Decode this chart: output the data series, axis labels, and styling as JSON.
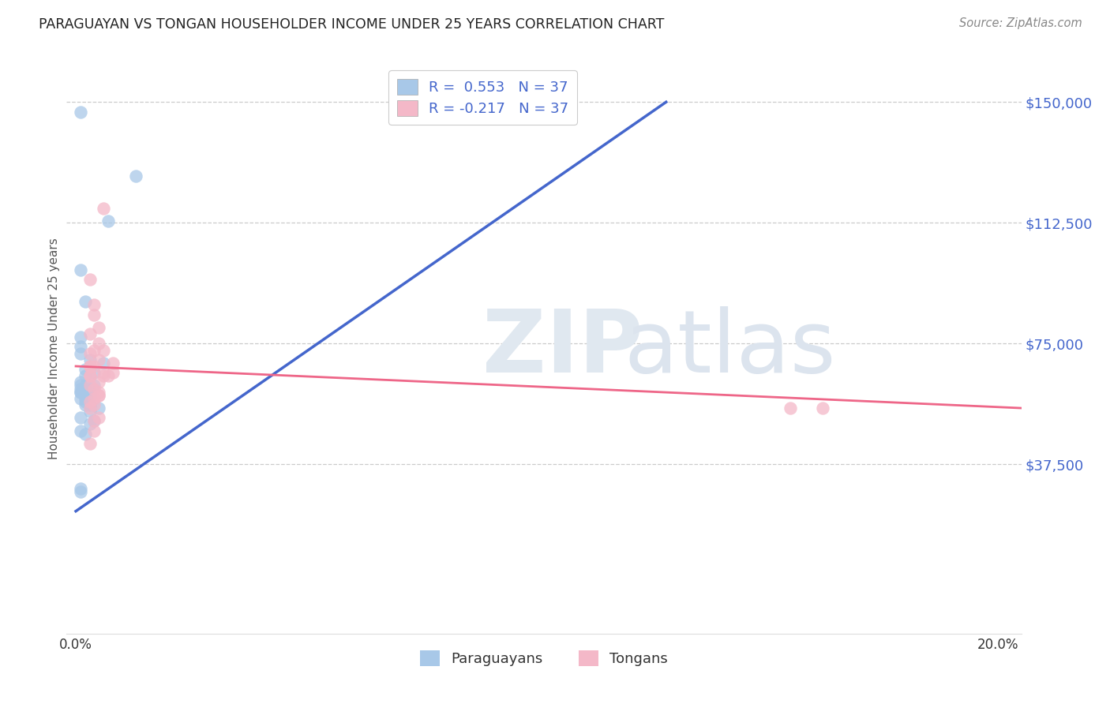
{
  "title": "PARAGUAYAN VS TONGAN HOUSEHOLDER INCOME UNDER 25 YEARS CORRELATION CHART",
  "source": "Source: ZipAtlas.com",
  "ylabel": "Householder Income Under 25 years",
  "ytick_values": [
    37500,
    75000,
    112500,
    150000
  ],
  "ytick_labels": [
    "$37,500",
    "$75,000",
    "$112,500",
    "$150,000"
  ],
  "ymin": -15000,
  "ymax": 162000,
  "xmin": -0.002,
  "xmax": 0.205,
  "r_paraguayan": 0.553,
  "n_paraguayan": 37,
  "r_tongan": -0.217,
  "n_tongan": 37,
  "blue_color": "#a8c8e8",
  "pink_color": "#f4b8c8",
  "line_blue": "#4466cc",
  "line_pink": "#ee6688",
  "blue_text": "#4466cc",
  "ytick_color": "#4466cc",
  "px": [
    0.001,
    0.013,
    0.007,
    0.001,
    0.002,
    0.001,
    0.001,
    0.001,
    0.003,
    0.002,
    0.002,
    0.001,
    0.004,
    0.003,
    0.003,
    0.002,
    0.002,
    0.003,
    0.005,
    0.003,
    0.006,
    0.004,
    0.001,
    0.004,
    0.003,
    0.001,
    0.002,
    0.002,
    0.001,
    0.001,
    0.001,
    0.001,
    0.002,
    0.001,
    0.001,
    0.001,
    0.002
  ],
  "py": [
    147000,
    127000,
    113000,
    98000,
    88000,
    77000,
    74000,
    72000,
    70000,
    67000,
    65000,
    63000,
    62000,
    60000,
    59000,
    58000,
    57000,
    56000,
    55000,
    54000,
    69000,
    66000,
    52000,
    51000,
    50000,
    48000,
    47000,
    62000,
    62000,
    60000,
    60000,
    58000,
    56000,
    30000,
    29000,
    61000,
    61000
  ],
  "tx": [
    0.006,
    0.003,
    0.004,
    0.004,
    0.005,
    0.005,
    0.004,
    0.006,
    0.005,
    0.003,
    0.003,
    0.008,
    0.006,
    0.008,
    0.003,
    0.004,
    0.005,
    0.004,
    0.003,
    0.003,
    0.003,
    0.003,
    0.005,
    0.005,
    0.004,
    0.006,
    0.007,
    0.003,
    0.005,
    0.004,
    0.003,
    0.005,
    0.004,
    0.003,
    0.004,
    0.155,
    0.162
  ],
  "ty": [
    117000,
    95000,
    87000,
    84000,
    80000,
    75000,
    73000,
    73000,
    70000,
    68000,
    65000,
    69000,
    66000,
    66000,
    62000,
    61000,
    59000,
    58000,
    72000,
    78000,
    68000,
    65000,
    63000,
    59000,
    68000,
    65000,
    65000,
    57000,
    60000,
    56000,
    55000,
    52000,
    48000,
    44000,
    51000,
    55000,
    55000
  ],
  "blue_line_x": [
    0.0,
    0.128
  ],
  "blue_line_y": [
    23000,
    150000
  ],
  "pink_line_x": [
    0.0,
    0.205
  ],
  "pink_line_y": [
    68000,
    55000
  ]
}
